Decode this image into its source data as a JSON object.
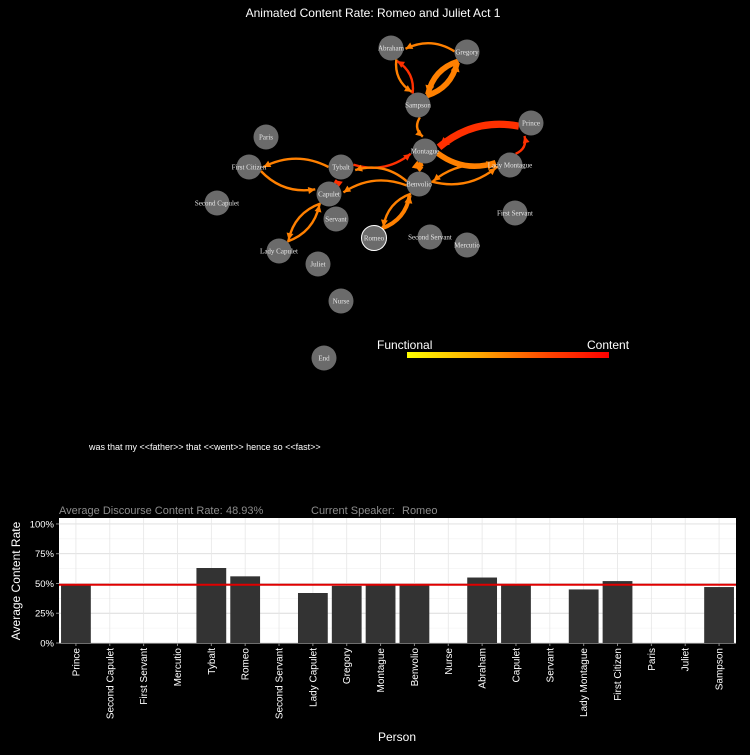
{
  "title": "Animated Content Rate: Romeo and Juliet Act 1",
  "legend": {
    "left_label": "Functional",
    "right_label": "Content",
    "gradient": [
      "#ffff00",
      "#ff9900",
      "#ff4400",
      "#ff0000"
    ]
  },
  "utterance": "was that my <<father>> that <<went>> hence so <<fast>>",
  "summary": {
    "rate_label": "Average Discourse Content Rate:",
    "rate_value": "48.93%",
    "speaker_label": "Current Speaker:",
    "speaker_value": "Romeo"
  },
  "colors": {
    "background": "#000000",
    "node": "#6b6b6b",
    "edge": "#ff8000",
    "edge_hot": "#ff3000",
    "bar": "#333333",
    "mean_line": "#e00000",
    "plot_bg": "#ffffff"
  },
  "network": {
    "nodes": [
      "Abraham",
      "Gregory",
      "Sampson",
      "Prince",
      "Paris",
      "First Citizen",
      "Tybalt",
      "Montague",
      "Lady Montague",
      "Benvolio",
      "Capulet",
      "Second Capulet",
      "Servant",
      "First Servant",
      "Lady Capulet",
      "Romeo",
      "Second Servant",
      "Mercutio",
      "Juliet",
      "Nurse",
      "End"
    ],
    "edges": [
      {
        "from": "Gregory",
        "to": "Abraham",
        "weight": 1
      },
      {
        "from": "Abraham",
        "to": "Sampson",
        "weight": 1
      },
      {
        "from": "Sampson",
        "to": "Abraham",
        "weight": 1
      },
      {
        "from": "Sampson",
        "to": "Gregory",
        "weight": 3
      },
      {
        "from": "Gregory",
        "to": "Sampson",
        "weight": 3
      },
      {
        "from": "Sampson",
        "to": "Montague",
        "weight": 1
      },
      {
        "from": "Prince",
        "to": "Montague",
        "weight": 4
      },
      {
        "from": "Montague",
        "to": "Lady Montague",
        "weight": 3
      },
      {
        "from": "Lady Montague",
        "to": "Benvolio",
        "weight": 1
      },
      {
        "from": "Benvolio",
        "to": "Lady Montague",
        "weight": 1
      },
      {
        "from": "Lady Montague",
        "to": "Prince",
        "weight": 1
      },
      {
        "from": "Montague",
        "to": "Benvolio",
        "weight": 3
      },
      {
        "from": "Benvolio",
        "to": "Romeo",
        "weight": 1
      },
      {
        "from": "Romeo",
        "to": "Benvolio",
        "weight": 2
      },
      {
        "from": "Tybalt",
        "to": "Montague",
        "weight": 1
      },
      {
        "from": "Benvolio",
        "to": "Tybalt",
        "weight": 1
      },
      {
        "from": "Tybalt",
        "to": "First Citizen",
        "weight": 1
      },
      {
        "from": "First Citizen",
        "to": "Capulet",
        "weight": 1
      },
      {
        "from": "Capulet",
        "to": "Tybalt",
        "weight": 1
      },
      {
        "from": "Capulet",
        "to": "Lady Capulet",
        "weight": 1
      },
      {
        "from": "Lady Capulet",
        "to": "Capulet",
        "weight": 1
      },
      {
        "from": "Benvolio",
        "to": "Capulet",
        "weight": 1
      }
    ]
  },
  "chart_data": {
    "type": "bar",
    "xlabel": "Person",
    "ylabel": "Average Content Rate",
    "ylim": [
      0,
      1.05
    ],
    "yticks": [
      0,
      0.25,
      0.5,
      0.75,
      1.0
    ],
    "ytick_labels": [
      "0%",
      "25%",
      "50%",
      "75%",
      "100%"
    ],
    "grid": true,
    "mean_line": 0.4893,
    "categories": [
      "Prince",
      "Second Capulet",
      "First Servant",
      "Mercutio",
      "Tybalt",
      "Romeo",
      "Second Servant",
      "Lady Capulet",
      "Gregory",
      "Montague",
      "Benvolio",
      "Nurse",
      "Abraham",
      "Capulet",
      "Servant",
      "Lady Montague",
      "First Citizen",
      "Paris",
      "Juliet",
      "Sampson"
    ],
    "values": [
      0.49,
      null,
      null,
      null,
      0.63,
      0.56,
      null,
      0.42,
      0.48,
      0.49,
      0.49,
      null,
      0.55,
      0.49,
      null,
      0.45,
      0.52,
      null,
      null,
      0.47
    ]
  }
}
